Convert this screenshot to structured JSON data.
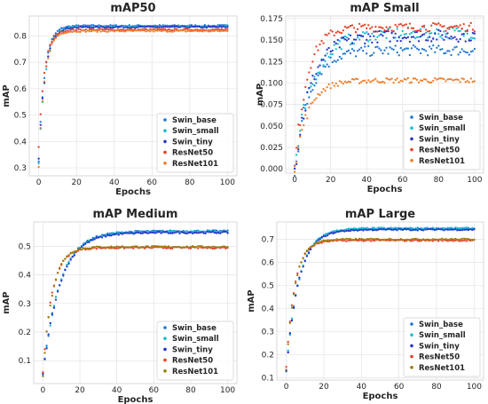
{
  "chart_data": [
    {
      "type": "scatter",
      "title": "mAP50",
      "xlabel": "Epochs",
      "ylabel": "mAP",
      "xlim": [
        -5,
        105
      ],
      "ylim": [
        0.27,
        0.875
      ],
      "xticks": [
        "0",
        "20",
        "40",
        "60",
        "80",
        "100"
      ],
      "yticks": [
        "0.3",
        "0.4",
        "0.5",
        "0.6",
        "0.7",
        "0.8"
      ],
      "grid": true,
      "legend_position": "lower-right",
      "series": [
        {
          "name": "Swin_base",
          "color": "#1f77d4",
          "start": 0.33,
          "plateau": 0.838,
          "rate": 0.32,
          "noise": 0.003
        },
        {
          "name": "Swin_small",
          "color": "#17becf",
          "start": 0.32,
          "plateau": 0.835,
          "rate": 0.3,
          "noise": 0.003
        },
        {
          "name": "Swin_tiny",
          "color": "#2833c9",
          "start": 0.33,
          "plateau": 0.833,
          "rate": 0.3,
          "noise": 0.003
        },
        {
          "name": "ResNet50",
          "color": "#e8402a",
          "start": 0.38,
          "plateau": 0.823,
          "rate": 0.33,
          "noise": 0.003
        },
        {
          "name": "ResNet101",
          "color": "#f07d28",
          "start": 0.3,
          "plateau": 0.818,
          "rate": 0.33,
          "noise": 0.003
        }
      ]
    },
    {
      "type": "scatter",
      "title": "mAP Small",
      "xlabel": "Epochs",
      "ylabel": "mAP",
      "xlim": [
        -5,
        105
      ],
      "ylim": [
        -0.005,
        0.178
      ],
      "xticks": [
        "0",
        "20",
        "40",
        "60",
        "80",
        "100"
      ],
      "yticks": [
        "0.000",
        "0.025",
        "0.050",
        "0.075",
        "0.100",
        "0.125",
        "0.150",
        "0.175"
      ],
      "grid": true,
      "legend_position": "lower-right",
      "series": [
        {
          "name": "Swin_base",
          "color": "#1f77d4",
          "start": 0.0,
          "plateau": 0.138,
          "rate": 0.12,
          "noise": 0.006
        },
        {
          "name": "Swin_small",
          "color": "#17becf",
          "start": 0.0,
          "plateau": 0.158,
          "rate": 0.1,
          "noise": 0.007
        },
        {
          "name": "Swin_tiny",
          "color": "#2833c9",
          "start": 0.0,
          "plateau": 0.155,
          "rate": 0.11,
          "noise": 0.007
        },
        {
          "name": "ResNet50",
          "color": "#e8402a",
          "start": 0.0,
          "plateau": 0.165,
          "rate": 0.15,
          "noise": 0.005
        },
        {
          "name": "ResNet101",
          "color": "#f07d28",
          "start": 0.0,
          "plateau": 0.103,
          "rate": 0.14,
          "noise": 0.003
        }
      ]
    },
    {
      "type": "scatter",
      "title": "mAP Medium",
      "xlabel": "Epochs",
      "ylabel": "mAP",
      "xlim": [
        -5,
        105
      ],
      "ylim": [
        0.02,
        0.585
      ],
      "xticks": [
        "0",
        "20",
        "40",
        "60",
        "80",
        "100"
      ],
      "yticks": [
        "0.1",
        "0.2",
        "0.3",
        "0.4",
        "0.5"
      ],
      "grid": true,
      "legend_position": "lower-right",
      "series": [
        {
          "name": "Swin_base",
          "color": "#1f77d4",
          "start": 0.05,
          "plateau": 0.553,
          "rate": 0.11,
          "noise": 0.003
        },
        {
          "name": "Swin_small",
          "color": "#17becf",
          "start": 0.05,
          "plateau": 0.551,
          "rate": 0.11,
          "noise": 0.003
        },
        {
          "name": "Swin_tiny",
          "color": "#2833c9",
          "start": 0.05,
          "plateau": 0.548,
          "rate": 0.11,
          "noise": 0.003
        },
        {
          "name": "ResNet50",
          "color": "#e8402a",
          "start": 0.06,
          "plateau": 0.495,
          "rate": 0.2,
          "noise": 0.003
        },
        {
          "name": "ResNet101",
          "color": "#9a7d0a",
          "start": 0.05,
          "plateau": 0.498,
          "rate": 0.2,
          "noise": 0.003
        }
      ]
    },
    {
      "type": "scatter",
      "title": "mAP Large",
      "xlabel": "Epochs",
      "ylabel": "mAP",
      "xlim": [
        -5,
        105
      ],
      "ylim": [
        0.09,
        0.775
      ],
      "xticks": [
        "0",
        "20",
        "40",
        "60",
        "80",
        "100"
      ],
      "yticks": [
        "0.1",
        "0.2",
        "0.3",
        "0.4",
        "0.5",
        "0.6",
        "0.7"
      ],
      "grid": true,
      "legend_position": "lower-right",
      "series": [
        {
          "name": "Swin_base",
          "color": "#1f77d4",
          "start": 0.13,
          "plateau": 0.745,
          "rate": 0.15,
          "noise": 0.003
        },
        {
          "name": "Swin_small",
          "color": "#17becf",
          "start": 0.13,
          "plateau": 0.748,
          "rate": 0.15,
          "noise": 0.003
        },
        {
          "name": "Swin_tiny",
          "color": "#2833c9",
          "start": 0.13,
          "plateau": 0.742,
          "rate": 0.15,
          "noise": 0.003
        },
        {
          "name": "ResNet50",
          "color": "#e8402a",
          "start": 0.15,
          "plateau": 0.695,
          "rate": 0.22,
          "noise": 0.003
        },
        {
          "name": "ResNet101",
          "color": "#9a7d0a",
          "start": 0.13,
          "plateau": 0.7,
          "rate": 0.22,
          "noise": 0.003
        }
      ]
    }
  ]
}
